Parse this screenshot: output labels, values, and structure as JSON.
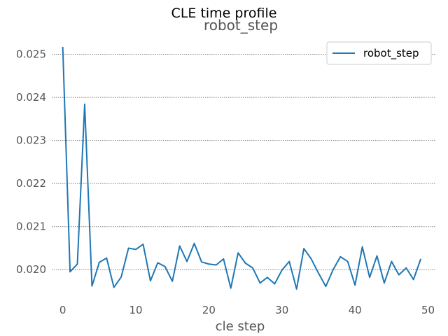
{
  "chart_data": {
    "type": "line",
    "suptitle": "CLE time profile",
    "title": "robot_step",
    "xlabel": "cle step",
    "ylabel": "",
    "xlim": [
      -1.5,
      51
    ],
    "ylim": [
      0.01937,
      0.02535
    ],
    "x_ticks": [
      0,
      10,
      20,
      30,
      40,
      50
    ],
    "y_ticks": [
      0.02,
      0.021,
      0.022,
      0.023,
      0.024,
      0.025
    ],
    "grid": "horizontal dotted",
    "legend_position": "top-right",
    "colors": {
      "series": "#1f77b4",
      "grid": "#808080",
      "text": "#555555"
    },
    "series": [
      {
        "name": "robot_step",
        "x": [
          0,
          1,
          2,
          3,
          4,
          5,
          6,
          7,
          8,
          9,
          10,
          11,
          12,
          13,
          14,
          15,
          16,
          17,
          18,
          19,
          20,
          21,
          22,
          23,
          24,
          25,
          26,
          27,
          28,
          29,
          30,
          31,
          32,
          33,
          34,
          35,
          36,
          37,
          38,
          39,
          40,
          41,
          42,
          43,
          44,
          45,
          46,
          47,
          48,
          49
        ],
        "y": [
          0.02517,
          0.01995,
          0.02013,
          0.02384,
          0.01962,
          0.02017,
          0.02027,
          0.01959,
          0.01983,
          0.0205,
          0.02047,
          0.02059,
          0.01974,
          0.02016,
          0.02007,
          0.01973,
          0.02055,
          0.02019,
          0.02061,
          0.02018,
          0.02013,
          0.02011,
          0.02025,
          0.01957,
          0.02039,
          0.02015,
          0.02004,
          0.01969,
          0.01982,
          0.01967,
          0.01999,
          0.02019,
          0.01955,
          0.02049,
          0.02025,
          0.01992,
          0.01961,
          0.02,
          0.0203,
          0.02019,
          0.01964,
          0.02053,
          0.01982,
          0.02032,
          0.01969,
          0.02019,
          0.01988,
          0.02004,
          0.01977,
          0.02025
        ]
      }
    ]
  }
}
